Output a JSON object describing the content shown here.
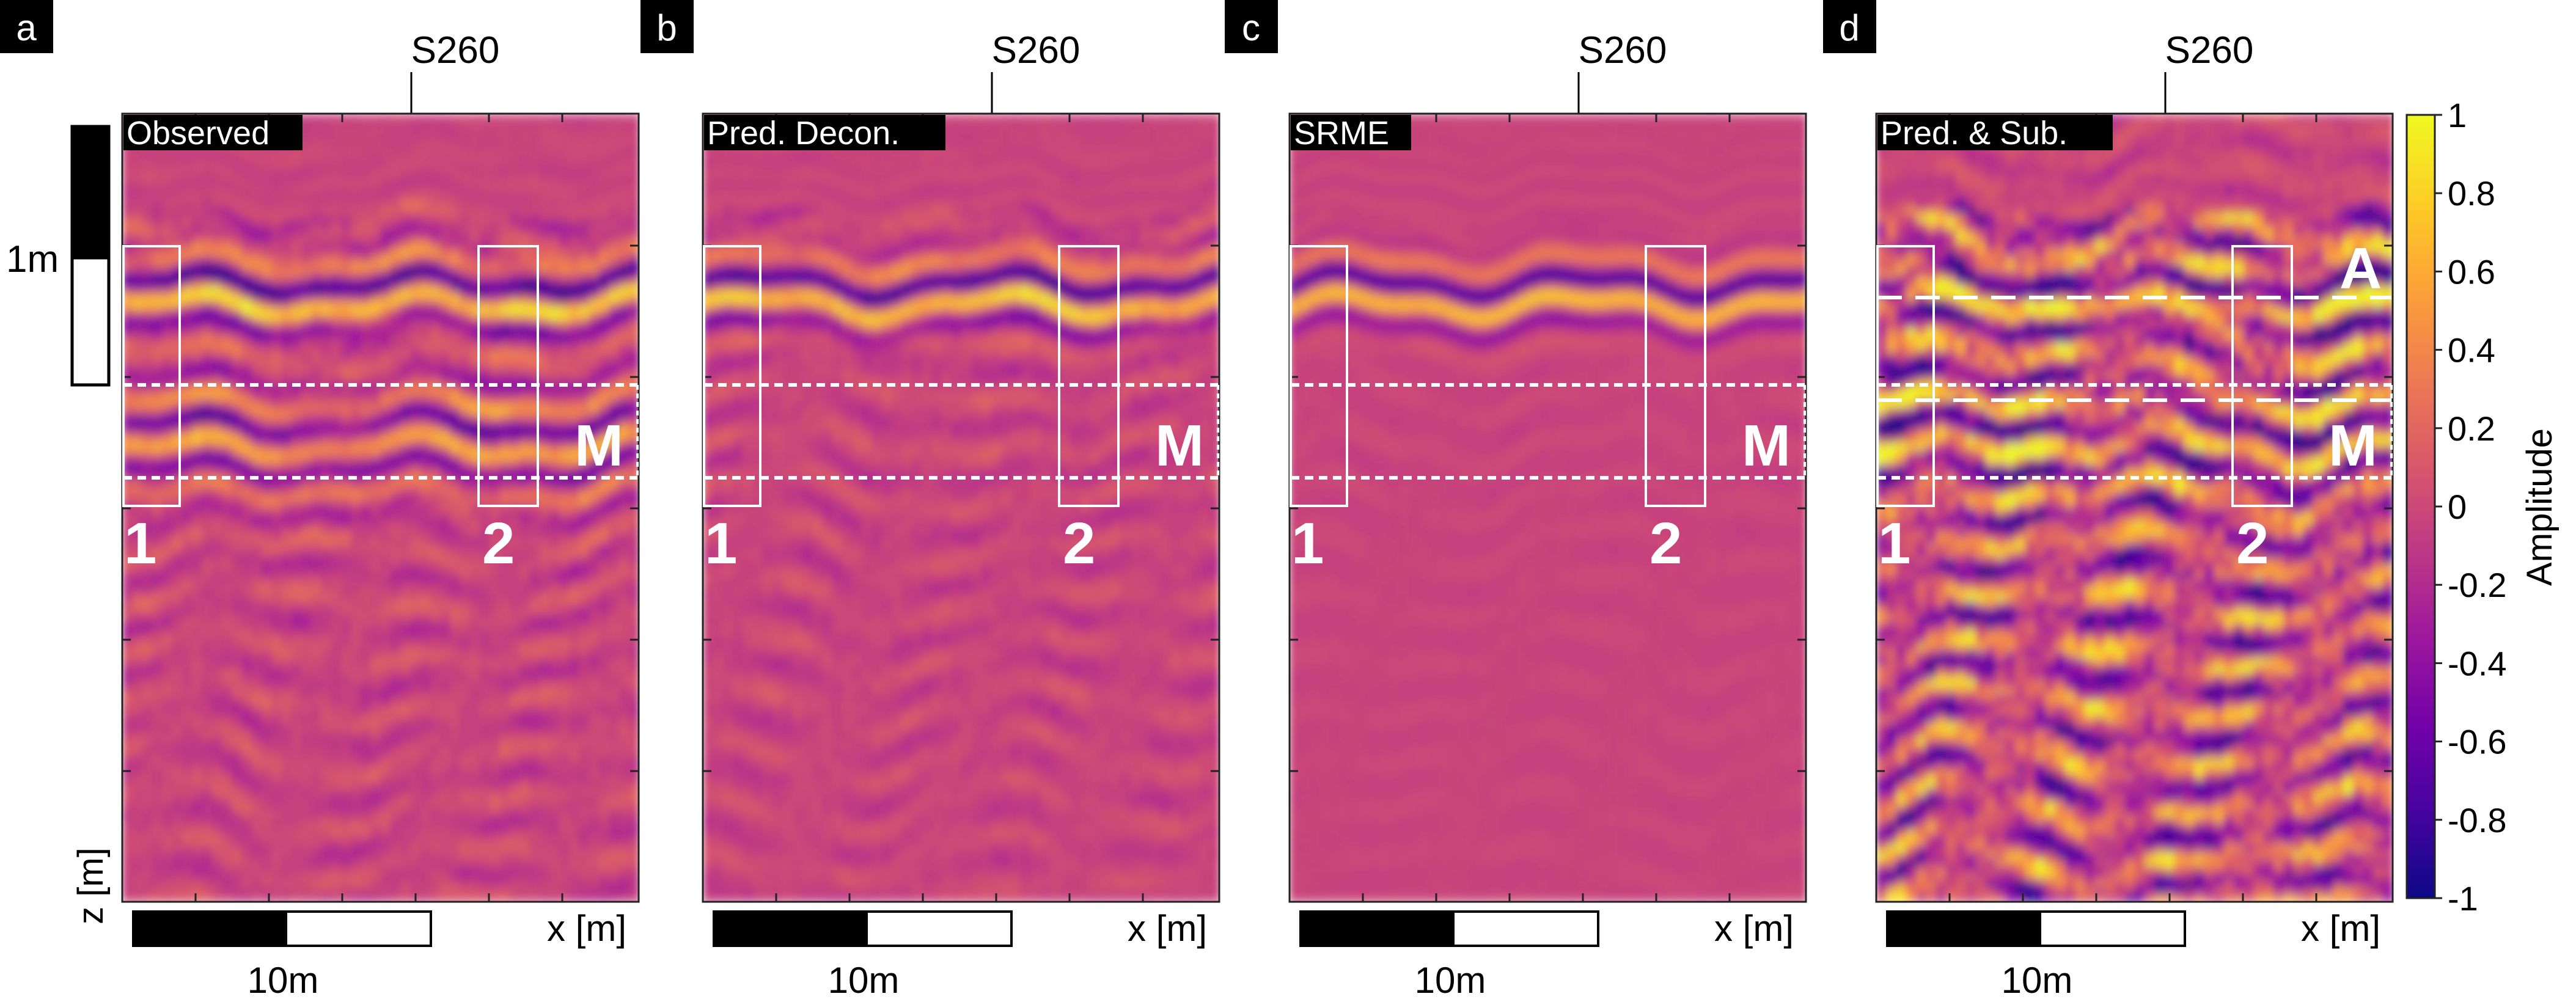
{
  "figure": {
    "y_axis_label": "z [m]",
    "depth_scale_label": "1m",
    "x_axis_label": "x [m]",
    "scalebar_label": "10m",
    "marker_label": "S260"
  },
  "colors": {
    "cmap": [
      "#0d0887",
      "#46039f",
      "#7201a8",
      "#9c179e",
      "#bd3786",
      "#d8576b",
      "#ed7953",
      "#fb9f3a",
      "#fdca26",
      "#f0f921"
    ],
    "overlay": "#ffffff",
    "panel_letter_bg": "#000000"
  },
  "panels": [
    {
      "letter": "a",
      "title": "Observed",
      "box1": "1",
      "box2": "2",
      "zone_m": "M",
      "zone_a": "",
      "noise": 0.32,
      "multiple": 0.85,
      "primary": 1.0,
      "atten": 1.0
    },
    {
      "letter": "b",
      "title": "Pred. Decon.",
      "box1": "1",
      "box2": "2",
      "zone_m": "M",
      "zone_a": "",
      "noise": 0.22,
      "multiple": 0.06,
      "primary": 1.0,
      "atten": 1.0
    },
    {
      "letter": "c",
      "title": "SRME",
      "box1": "1",
      "box2": "2",
      "zone_m": "M",
      "zone_a": "",
      "noise": 0.06,
      "multiple": 0.03,
      "primary": 0.95,
      "atten": 1.0
    },
    {
      "letter": "d",
      "title": "Pred. & Sub.",
      "box1": "1",
      "box2": "2",
      "zone_m": "M",
      "zone_a": "A",
      "noise": 0.95,
      "multiple": 0.9,
      "primary": 0.9,
      "atten": 0.25
    }
  ],
  "chart_data": {
    "type": "heatmap",
    "title": "",
    "xlabel": "x [m]",
    "ylabel": "z [m]",
    "colorbar": {
      "label": "Amplitude",
      "range": [
        -1,
        1
      ],
      "ticks": [
        "1",
        "0.8",
        "0.6",
        "0.4",
        "0.2",
        "0",
        "-0.2",
        "-0.4",
        "-0.6",
        "-0.8",
        "-1"
      ]
    },
    "series": [
      {
        "name": "Observed"
      },
      {
        "name": "Pred. Decon."
      },
      {
        "name": "SRME"
      },
      {
        "name": "Pred. & Sub."
      }
    ]
  }
}
